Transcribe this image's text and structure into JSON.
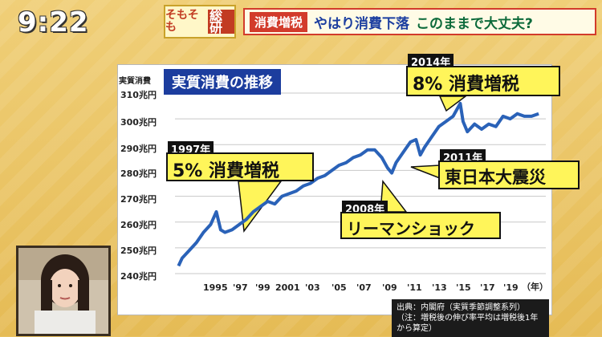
{
  "header": {
    "clock": "9:22",
    "logo_text": "そもそも",
    "logo_highlight": "総研",
    "topbar_tag": "消費増税",
    "topbar_text1": "やはり消費下落",
    "topbar_text2": "このままで大丈夫?"
  },
  "chart_title": "実質消費の推移",
  "colors": {
    "line": "#2a62b8",
    "title_bg": "#1c3d9e",
    "callout_bg": "#fff55a"
  },
  "chart_data": {
    "type": "line",
    "title": "実質消費の推移",
    "ylabel": "実質消費",
    "xlabel": "",
    "x_unit": "（年）",
    "ylim": [
      240,
      310
    ],
    "xlim": [
      1994,
      2020
    ],
    "y_ticks": [
      "310兆円",
      "300兆円",
      "290兆円",
      "280兆円",
      "270兆円",
      "260兆円",
      "250兆円",
      "240兆円"
    ],
    "x_ticks": [
      "1995",
      "'97",
      "'99",
      "2001",
      "'03",
      "'05",
      "'07",
      "'09",
      "'11",
      "'13",
      "'15",
      "'17",
      "'19"
    ],
    "series": [
      {
        "x": [
          1994.25,
          1994.5,
          1995,
          1995.5,
          1996,
          1996.5,
          1996.9,
          1997.2,
          1997.5,
          1998,
          1998.5,
          1999,
          1999.5,
          2000,
          2000.5,
          2001,
          2001.5,
          2002,
          2002.5,
          2003,
          2003.5,
          2004,
          2004.5,
          2005,
          2005.5,
          2006,
          2006.5,
          2007,
          2007.5,
          2008,
          2008.5,
          2008.9,
          2009.2,
          2009.5,
          2010,
          2010.5,
          2010.9,
          2011.2,
          2011.5,
          2012,
          2012.5,
          2013,
          2013.5,
          2014.0,
          2014.2,
          2014.5,
          2015,
          2015.5,
          2016,
          2016.5,
          2017,
          2017.5,
          2018,
          2018.5,
          2019,
          2019.5
        ],
        "y": [
          243,
          246,
          249,
          252,
          256,
          259,
          264,
          257,
          256,
          257,
          259,
          261,
          264,
          266,
          268,
          267,
          270,
          271,
          272,
          274,
          275,
          277,
          278,
          280,
          282,
          283,
          285,
          286,
          288,
          288,
          285,
          281,
          279,
          283,
          287,
          291,
          292,
          286,
          289,
          293,
          297,
          299,
          301,
          306,
          299,
          295,
          298,
          296,
          298,
          297,
          301,
          300,
          302,
          301,
          301,
          302
        ]
      }
    ]
  },
  "annotations": [
    {
      "year": "1997年",
      "text": "5% 消費増税"
    },
    {
      "year": "2008年",
      "text": "リーマンショック"
    },
    {
      "year": "2011年",
      "text": "東日本大震災"
    },
    {
      "year": "2014年",
      "text": "8% 消費増税"
    }
  ],
  "source": {
    "line1": "出典：内閣府（実質季節調整系列）",
    "line2": "（注：増税後の伸び率平均は増税後1年から算定）"
  }
}
